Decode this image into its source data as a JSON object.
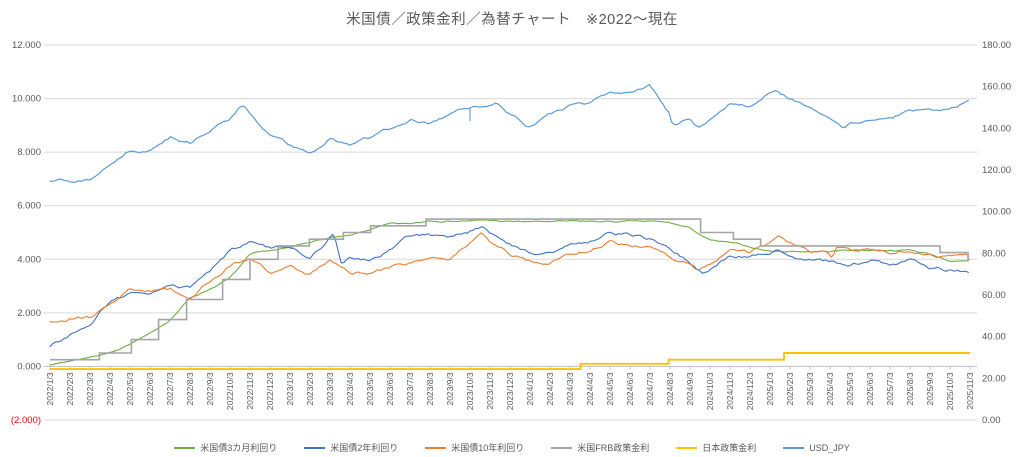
{
  "title": "米国債／政策金利／為替チャート　※2022～現在",
  "axes": {
    "left_ticks": [
      "12.000",
      "10.000",
      "8.000",
      "6.000",
      "4.000",
      "2.000",
      "0.000",
      "(2.000)"
    ],
    "left_values": [
      12,
      10,
      8,
      6,
      4,
      2,
      0,
      -2
    ],
    "right_ticks": [
      "180.00",
      "160.00",
      "140.00",
      "120.00",
      "100.00",
      "80.00",
      "60.00",
      "40.00",
      "20.00",
      "0.00"
    ],
    "right_values": [
      180,
      160,
      140,
      120,
      100,
      80,
      60,
      40,
      20,
      0
    ],
    "label_color": "#595959",
    "negative_tick_color": "#FF0000",
    "grid_color": "#D9D9D9",
    "axis_line_color": "#BFBFBF"
  },
  "chart_data": {
    "type": "line",
    "title": "米国債／政策金利／為替チャート　※2022～現在",
    "legend_position": "bottom",
    "grid": true,
    "y_left": {
      "min": -2,
      "max": 12,
      "tick_step": 2
    },
    "y_right": {
      "min": 0,
      "max": 180,
      "tick_step": 20
    },
    "categories": [
      "2022/1/3",
      "2022/2/3",
      "2022/3/3",
      "2022/4/3",
      "2022/5/3",
      "2022/6/3",
      "2022/7/3",
      "2022/8/3",
      "2022/9/3",
      "2022/10/3",
      "2022/11/3",
      "2022/12/3",
      "2023/1/3",
      "2023/2/3",
      "2023/3/3",
      "2023/4/3",
      "2023/5/3",
      "2023/6/3",
      "2023/7/3",
      "2023/8/3",
      "2023/9/3",
      "2023/10/3",
      "2023/11/3",
      "2023/12/3",
      "2024/1/3",
      "2024/2/3",
      "2024/3/3",
      "2024/4/3",
      "2024/5/3",
      "2024/6/3",
      "2024/7/3",
      "2024/8/3",
      "2024/9/3",
      "2024/10/3",
      "2024/11/3",
      "2024/12/3",
      "2025/1/3",
      "2025/2/3",
      "2025/3/3",
      "2025/4/3",
      "2025/5/3",
      "2025/6/3",
      "2025/7/3",
      "2025/8/3",
      "2025/9/3",
      "2025/10/3",
      "2025/11/3"
    ],
    "series": [
      {
        "name": "米国債3カ月利回り",
        "color": "#70AD47",
        "axis": "left",
        "kind": "line",
        "monthly_values": [
          0.06,
          0.2,
          0.35,
          0.52,
          0.85,
          1.2,
          1.75,
          2.55,
          2.9,
          3.3,
          4.15,
          4.3,
          4.4,
          4.65,
          4.8,
          4.85,
          5.1,
          5.3,
          5.3,
          5.45,
          5.45,
          5.45,
          5.45,
          5.4,
          5.4,
          5.4,
          5.4,
          5.4,
          5.4,
          5.4,
          5.4,
          5.35,
          5.15,
          4.7,
          4.6,
          4.45,
          4.3,
          4.3,
          4.3,
          4.3,
          4.35,
          4.35,
          4.35,
          4.35,
          4.2,
          3.95,
          3.9
        ],
        "extra_points": []
      },
      {
        "name": "米国債2年利回り",
        "color": "#4472C4",
        "axis": "left",
        "kind": "line",
        "monthly_values": [
          0.78,
          1.2,
          1.45,
          2.45,
          2.7,
          2.65,
          2.95,
          2.9,
          3.5,
          4.25,
          4.6,
          4.35,
          4.4,
          4.1,
          4.85,
          4.05,
          4.0,
          4.4,
          4.9,
          4.9,
          4.85,
          5.05,
          5.0,
          4.6,
          4.25,
          4.25,
          4.6,
          4.65,
          5.0,
          4.9,
          4.75,
          4.3,
          3.9,
          3.65,
          4.2,
          4.15,
          4.25,
          4.2,
          4.0,
          3.9,
          3.75,
          3.95,
          3.8,
          3.95,
          3.6,
          3.6,
          3.55
        ],
        "extra_points": [
          {
            "i": 14.2,
            "v": 5.05
          },
          {
            "i": 14.55,
            "v": 3.85
          },
          {
            "i": 21.6,
            "v": 5.2
          },
          {
            "i": 32.7,
            "v": 3.52
          },
          {
            "i": 36.4,
            "v": 4.4
          }
        ]
      },
      {
        "name": "米国債10年利回り",
        "color": "#ED7D31",
        "axis": "left",
        "kind": "line",
        "monthly_values": [
          1.63,
          1.8,
          1.85,
          2.4,
          2.95,
          2.85,
          2.9,
          2.6,
          3.2,
          3.8,
          4.1,
          3.55,
          3.75,
          3.4,
          4.0,
          3.45,
          3.45,
          3.7,
          3.85,
          4.05,
          4.1,
          4.7,
          4.65,
          4.2,
          3.95,
          3.95,
          4.2,
          4.35,
          4.65,
          4.45,
          4.45,
          4.05,
          3.85,
          3.8,
          4.35,
          4.2,
          4.6,
          4.55,
          4.2,
          4.15,
          4.35,
          4.4,
          4.25,
          4.35,
          4.15,
          4.1,
          4.1
        ],
        "extra_points": [
          {
            "i": 21.6,
            "v": 5.0
          },
          {
            "i": 32.4,
            "v": 3.62
          },
          {
            "i": 36.4,
            "v": 4.8
          },
          {
            "i": 39.1,
            "v": 4.0
          },
          {
            "i": 39.35,
            "v": 4.5
          }
        ]
      },
      {
        "name": "米国FRB政策金利",
        "color": "#A5A5A5",
        "axis": "left",
        "kind": "step",
        "initial_value": 0.25,
        "changes": [
          {
            "date": "2022/3/17",
            "i": 2.47,
            "v": 0.5
          },
          {
            "date": "2022/5/5",
            "i": 4.07,
            "v": 1.0
          },
          {
            "date": "2022/6/16",
            "i": 5.43,
            "v": 1.75
          },
          {
            "date": "2022/7/28",
            "i": 6.83,
            "v": 2.5
          },
          {
            "date": "2022/9/22",
            "i": 8.63,
            "v": 3.25
          },
          {
            "date": "2022/11/3",
            "i": 10.0,
            "v": 4.0
          },
          {
            "date": "2022/12/15",
            "i": 11.4,
            "v": 4.5
          },
          {
            "date": "2023/2/2",
            "i": 12.97,
            "v": 4.75
          },
          {
            "date": "2023/3/23",
            "i": 14.67,
            "v": 5.0
          },
          {
            "date": "2023/5/4",
            "i": 16.03,
            "v": 5.25
          },
          {
            "date": "2023/7/27",
            "i": 18.8,
            "v": 5.5
          },
          {
            "date": "2024/9/19",
            "i": 32.53,
            "v": 5.0
          },
          {
            "date": "2024/11/8",
            "i": 34.17,
            "v": 4.75
          },
          {
            "date": "2024/12/19",
            "i": 35.53,
            "v": 4.5
          },
          {
            "date": "2025/9/18",
            "i": 44.5,
            "v": 4.25
          },
          {
            "date": "2025/10/30",
            "i": 45.9,
            "v": 4.0
          }
        ]
      },
      {
        "name": "日本政策金利",
        "color": "#FFC000",
        "axis": "left",
        "kind": "step",
        "initial_value": -0.1,
        "changes": [
          {
            "date": "2024/3/19",
            "i": 26.53,
            "v": 0.1
          },
          {
            "date": "2024/7/31",
            "i": 30.93,
            "v": 0.25
          },
          {
            "date": "2025/1/24",
            "i": 36.7,
            "v": 0.5
          }
        ]
      },
      {
        "name": "USD_JPY",
        "color": "#5B9BD5",
        "axis": "right",
        "kind": "line",
        "monthly_values": [
          115.2,
          114.8,
          115.5,
          122.5,
          130.0,
          130.0,
          136.0,
          133.0,
          140.0,
          144.5,
          147.5,
          136.5,
          131.0,
          128.5,
          136.0,
          132.5,
          135.5,
          139.5,
          144.5,
          142.5,
          147.0,
          149.5,
          151.0,
          147.0,
          142.0,
          146.5,
          150.5,
          151.5,
          156.0,
          156.0,
          161.0,
          147.0,
          145.0,
          143.5,
          152.0,
          150.0,
          157.0,
          154.5,
          149.5,
          146.0,
          143.0,
          144.0,
          144.5,
          148.0,
          147.0,
          148.0,
          154.0
        ],
        "extra_points": [
          {
            "i": 9.6,
            "v": 151.5
          },
          {
            "i": 22.4,
            "v": 151.8
          },
          {
            "i": 23.83,
            "v": 141.5
          },
          {
            "i": 31.1,
            "v": 142.0
          },
          {
            "i": 32.45,
            "v": 140.5
          },
          {
            "i": 36.35,
            "v": 158.5
          },
          {
            "i": 39.65,
            "v": 140.0
          }
        ],
        "spike": {
          "i": 21.0,
          "low": 143.5,
          "note": "2023/10/3 下ヒゲ"
        }
      }
    ]
  }
}
